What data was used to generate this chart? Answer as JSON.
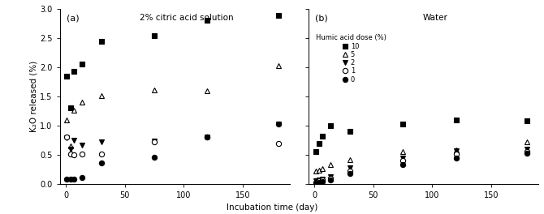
{
  "title_a": "2% citric acid solution",
  "title_b": "Water",
  "xlabel": "Incubation time (day)",
  "ylabel": "K₂O released (%)",
  "label_a": "(a)",
  "label_b": "(b)",
  "legend_title": "Humic acid dose (%)",
  "series_a": {
    "dose10": {
      "x": [
        1,
        4,
        7,
        14,
        30,
        75,
        120,
        180
      ],
      "y": [
        1.85,
        1.3,
        1.92,
        2.05,
        2.44,
        2.53,
        2.8,
        2.88
      ]
    },
    "dose5": {
      "x": [
        1,
        4,
        7,
        14,
        30,
        75,
        120,
        180
      ],
      "y": [
        1.1,
        0.65,
        1.26,
        1.4,
        1.51,
        1.61,
        1.6,
        2.02
      ]
    },
    "dose2": {
      "x": [
        1,
        4,
        7,
        14,
        30,
        75,
        120,
        180
      ],
      "y": [
        0.79,
        0.6,
        0.75,
        0.67,
        0.72,
        0.73,
        0.8,
        1.03
      ]
    },
    "dose1": {
      "x": [
        1,
        4,
        7,
        14,
        30,
        75,
        120,
        180
      ],
      "y": [
        0.8,
        0.52,
        0.5,
        0.52,
        0.52,
        0.72,
        0.8,
        0.7
      ]
    },
    "dose0": {
      "x": [
        1,
        4,
        7,
        14,
        30,
        75,
        120,
        180
      ],
      "y": [
        0.08,
        0.08,
        0.09,
        0.11,
        0.36,
        0.46,
        0.8,
        1.03
      ]
    }
  },
  "series_b": {
    "dose10": {
      "x": [
        1,
        4,
        7,
        14,
        30,
        75,
        120,
        180
      ],
      "y": [
        0.55,
        0.7,
        0.82,
        1.0,
        0.9,
        1.02,
        1.1,
        1.08
      ]
    },
    "dose5": {
      "x": [
        1,
        4,
        7,
        14,
        30,
        75,
        120,
        180
      ],
      "y": [
        0.22,
        0.24,
        0.27,
        0.34,
        0.42,
        0.56,
        0.58,
        0.72
      ]
    },
    "dose2": {
      "x": [
        1,
        4,
        7,
        14,
        30,
        75,
        120,
        180
      ],
      "y": [
        0.05,
        0.07,
        0.09,
        0.12,
        0.28,
        0.44,
        0.57,
        0.6
      ]
    },
    "dose1": {
      "x": [
        1,
        4,
        7,
        14,
        30,
        75,
        120,
        180
      ],
      "y": [
        0.03,
        0.05,
        0.07,
        0.1,
        0.22,
        0.4,
        0.52,
        0.56
      ]
    },
    "dose0": {
      "x": [
        1,
        4,
        7,
        14,
        30,
        75,
        120,
        180
      ],
      "y": [
        0.02,
        0.03,
        0.04,
        0.07,
        0.18,
        0.33,
        0.44,
        0.53
      ]
    }
  },
  "ylim": [
    0.0,
    3.0
  ],
  "xlim": [
    -5,
    190
  ],
  "yticks": [
    0.0,
    0.5,
    1.0,
    1.5,
    2.0,
    2.5,
    3.0
  ],
  "xticks": [
    0,
    50,
    100,
    150
  ],
  "bg_color": "#ffffff",
  "line_color": "#aaaaaa",
  "fig_width": 6.7,
  "fig_height": 2.64,
  "dpi": 100
}
